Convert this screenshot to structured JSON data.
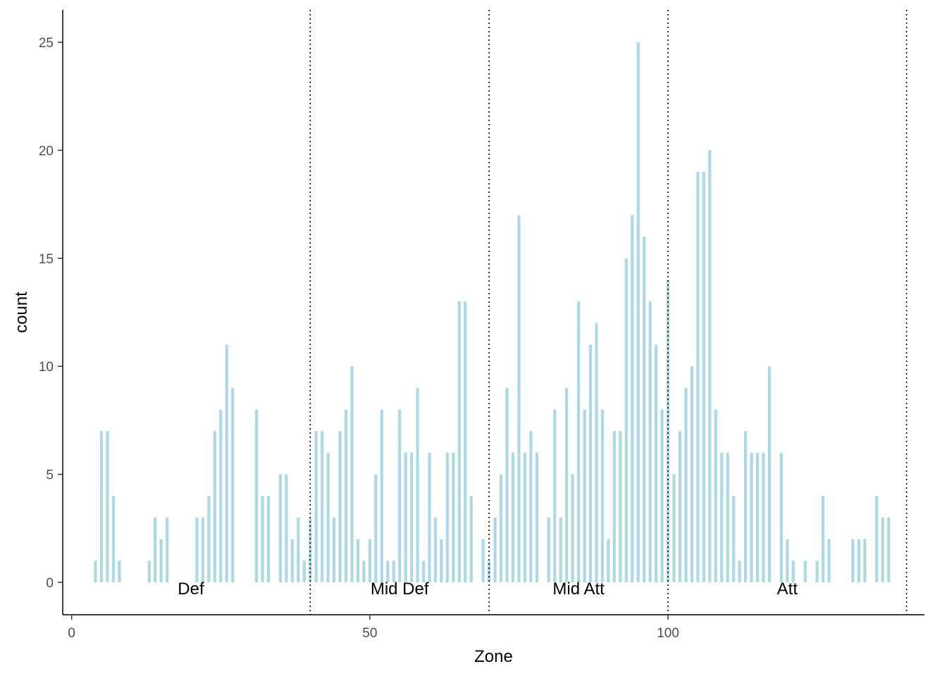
{
  "chart_data": {
    "type": "bar",
    "title": "",
    "xlabel": "Zone",
    "ylabel": "count",
    "xlim": [
      -1.5,
      143
    ],
    "ylim": [
      -1.5,
      26.5
    ],
    "x_ticks": [
      0,
      50,
      100
    ],
    "y_ticks": [
      0,
      5,
      10,
      15,
      20,
      25
    ],
    "grid": false,
    "bar_color": "#ADD8E6",
    "points": [
      {
        "x": 4,
        "y": 1
      },
      {
        "x": 5,
        "y": 7
      },
      {
        "x": 6,
        "y": 7
      },
      {
        "x": 7,
        "y": 4
      },
      {
        "x": 8,
        "y": 1
      },
      {
        "x": 13,
        "y": 1
      },
      {
        "x": 14,
        "y": 3
      },
      {
        "x": 15,
        "y": 2
      },
      {
        "x": 16,
        "y": 3
      },
      {
        "x": 21,
        "y": 3
      },
      {
        "x": 22,
        "y": 3
      },
      {
        "x": 23,
        "y": 4
      },
      {
        "x": 24,
        "y": 7
      },
      {
        "x": 25,
        "y": 8
      },
      {
        "x": 26,
        "y": 11
      },
      {
        "x": 27,
        "y": 9
      },
      {
        "x": 31,
        "y": 8
      },
      {
        "x": 32,
        "y": 4
      },
      {
        "x": 33,
        "y": 4
      },
      {
        "x": 35,
        "y": 5
      },
      {
        "x": 36,
        "y": 5
      },
      {
        "x": 37,
        "y": 2
      },
      {
        "x": 38,
        "y": 3
      },
      {
        "x": 39,
        "y": 1
      },
      {
        "x": 40,
        "y": 3
      },
      {
        "x": 41,
        "y": 7
      },
      {
        "x": 42,
        "y": 7
      },
      {
        "x": 43,
        "y": 6
      },
      {
        "x": 44,
        "y": 3
      },
      {
        "x": 45,
        "y": 7
      },
      {
        "x": 46,
        "y": 8
      },
      {
        "x": 47,
        "y": 10
      },
      {
        "x": 48,
        "y": 2
      },
      {
        "x": 49,
        "y": 1
      },
      {
        "x": 50,
        "y": 2
      },
      {
        "x": 51,
        "y": 5
      },
      {
        "x": 52,
        "y": 8
      },
      {
        "x": 53,
        "y": 1
      },
      {
        "x": 54,
        "y": 1
      },
      {
        "x": 55,
        "y": 8
      },
      {
        "x": 56,
        "y": 6
      },
      {
        "x": 57,
        "y": 6
      },
      {
        "x": 58,
        "y": 9
      },
      {
        "x": 59,
        "y": 1
      },
      {
        "x": 60,
        "y": 6
      },
      {
        "x": 61,
        "y": 3
      },
      {
        "x": 62,
        "y": 2
      },
      {
        "x": 63,
        "y": 6
      },
      {
        "x": 64,
        "y": 6
      },
      {
        "x": 65,
        "y": 13
      },
      {
        "x": 66,
        "y": 13
      },
      {
        "x": 67,
        "y": 4
      },
      {
        "x": 69,
        "y": 2
      },
      {
        "x": 70,
        "y": 1
      },
      {
        "x": 71,
        "y": 3
      },
      {
        "x": 72,
        "y": 5
      },
      {
        "x": 73,
        "y": 9
      },
      {
        "x": 74,
        "y": 6
      },
      {
        "x": 75,
        "y": 17
      },
      {
        "x": 76,
        "y": 6
      },
      {
        "x": 77,
        "y": 7
      },
      {
        "x": 78,
        "y": 6
      },
      {
        "x": 80,
        "y": 3
      },
      {
        "x": 81,
        "y": 8
      },
      {
        "x": 82,
        "y": 3
      },
      {
        "x": 83,
        "y": 9
      },
      {
        "x": 84,
        "y": 5
      },
      {
        "x": 85,
        "y": 13
      },
      {
        "x": 86,
        "y": 8
      },
      {
        "x": 87,
        "y": 11
      },
      {
        "x": 88,
        "y": 12
      },
      {
        "x": 89,
        "y": 8
      },
      {
        "x": 90,
        "y": 2
      },
      {
        "x": 91,
        "y": 7
      },
      {
        "x": 92,
        "y": 7
      },
      {
        "x": 93,
        "y": 15
      },
      {
        "x": 94,
        "y": 17
      },
      {
        "x": 95,
        "y": 25
      },
      {
        "x": 96,
        "y": 16
      },
      {
        "x": 97,
        "y": 13
      },
      {
        "x": 98,
        "y": 11
      },
      {
        "x": 99,
        "y": 8
      },
      {
        "x": 100,
        "y": 14
      },
      {
        "x": 101,
        "y": 5
      },
      {
        "x": 102,
        "y": 7
      },
      {
        "x": 103,
        "y": 9
      },
      {
        "x": 104,
        "y": 10
      },
      {
        "x": 105,
        "y": 19
      },
      {
        "x": 106,
        "y": 19
      },
      {
        "x": 107,
        "y": 20
      },
      {
        "x": 108,
        "y": 8
      },
      {
        "x": 109,
        "y": 6
      },
      {
        "x": 110,
        "y": 6
      },
      {
        "x": 111,
        "y": 4
      },
      {
        "x": 112,
        "y": 1
      },
      {
        "x": 113,
        "y": 7
      },
      {
        "x": 114,
        "y": 6
      },
      {
        "x": 115,
        "y": 6
      },
      {
        "x": 116,
        "y": 6
      },
      {
        "x": 117,
        "y": 10
      },
      {
        "x": 119,
        "y": 6
      },
      {
        "x": 120,
        "y": 2
      },
      {
        "x": 121,
        "y": 1
      },
      {
        "x": 123,
        "y": 1
      },
      {
        "x": 125,
        "y": 1
      },
      {
        "x": 126,
        "y": 4
      },
      {
        "x": 127,
        "y": 2
      },
      {
        "x": 131,
        "y": 2
      },
      {
        "x": 132,
        "y": 2
      },
      {
        "x": 133,
        "y": 2
      },
      {
        "x": 135,
        "y": 4
      },
      {
        "x": 136,
        "y": 3
      },
      {
        "x": 137,
        "y": 3
      }
    ],
    "vlines": [
      40,
      70,
      100,
      140
    ],
    "zone_labels": [
      {
        "text": "Def",
        "x": 20
      },
      {
        "text": "Mid Def",
        "x": 55
      },
      {
        "text": "Mid Att",
        "x": 85
      },
      {
        "text": "Att",
        "x": 120
      }
    ]
  }
}
